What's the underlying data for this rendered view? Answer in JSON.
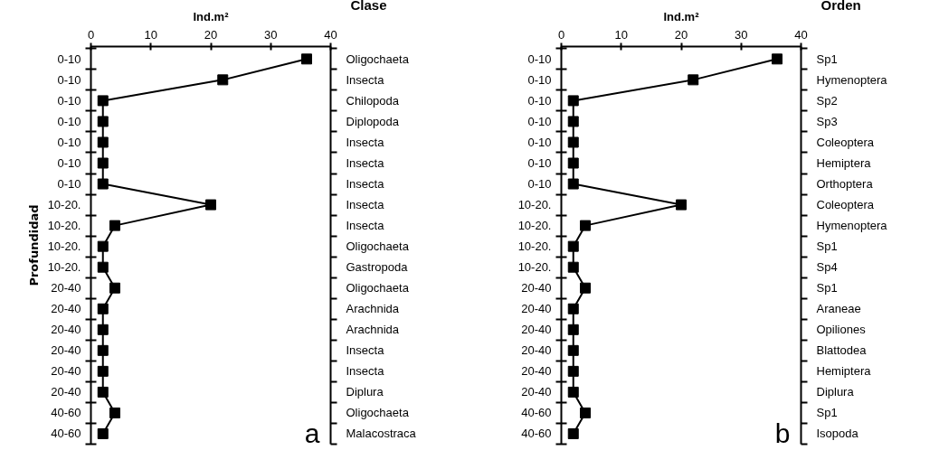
{
  "chart_data": [
    {
      "type": "line",
      "orientation": "horizontal",
      "xlabel": "Ind.m²",
      "ylabel": "Profundidad",
      "y2label": "Clase",
      "marker": "square",
      "color": "#000000",
      "xlim": [
        0,
        40
      ],
      "xticks": [
        0,
        10,
        20,
        30,
        40
      ],
      "categories": [
        "0-10",
        "0-10",
        "0-10",
        "0-10",
        "0-10",
        "0-10",
        "0-10",
        "10-20.",
        "10-20.",
        "10-20.",
        "10-20.",
        "20-40",
        "20-40",
        "20-40",
        "20-40",
        "20-40",
        "20-40",
        "40-60",
        "40-60"
      ],
      "y2_categories": [
        "Oligochaeta",
        "Insecta",
        "Chilopoda",
        "Diplopoda",
        "Insecta",
        "Insecta",
        "Insecta",
        "Insecta",
        "Insecta",
        "Oligochaeta",
        "Gastropoda",
        "Oligochaeta",
        "Arachnida",
        "Arachnida",
        "Insecta",
        "Insecta",
        "Diplura",
        "Oligochaeta",
        "Malacostraca"
      ],
      "values": [
        36,
        22,
        2,
        2,
        2,
        2,
        2,
        20,
        4,
        2,
        2,
        4,
        2,
        2,
        2,
        2,
        2,
        4,
        2
      ],
      "annotations": [
        "a"
      ]
    },
    {
      "type": "line",
      "orientation": "horizontal",
      "xlabel": "Ind.m²",
      "y2label": "Orden",
      "marker": "square",
      "color": "#000000",
      "xlim": [
        0,
        40
      ],
      "xticks": [
        0,
        10,
        20,
        30,
        40
      ],
      "categories": [
        "0-10",
        "0-10",
        "0-10",
        "0-10",
        "0-10",
        "0-10",
        "0-10",
        "10-20.",
        "10-20.",
        "10-20.",
        "10-20.",
        "20-40",
        "20-40",
        "20-40",
        "20-40",
        "20-40",
        "20-40",
        "40-60",
        "40-60"
      ],
      "y2_categories": [
        "Sp1",
        "Hymenoptera",
        "Sp2",
        "Sp3",
        "Coleoptera",
        "Hemiptera",
        "Orthoptera",
        "Coleoptera",
        "Hymenoptera",
        "Sp1",
        "Sp4",
        "Sp1",
        "Araneae",
        "Opiliones",
        "Blattodea",
        "Hemiptera",
        "Diplura",
        "Sp1",
        "Isopoda"
      ],
      "values": [
        36,
        22,
        2,
        2,
        2,
        2,
        2,
        20,
        4,
        2,
        2,
        4,
        2,
        2,
        2,
        2,
        2,
        4,
        2
      ],
      "annotations": [
        "b"
      ]
    }
  ]
}
